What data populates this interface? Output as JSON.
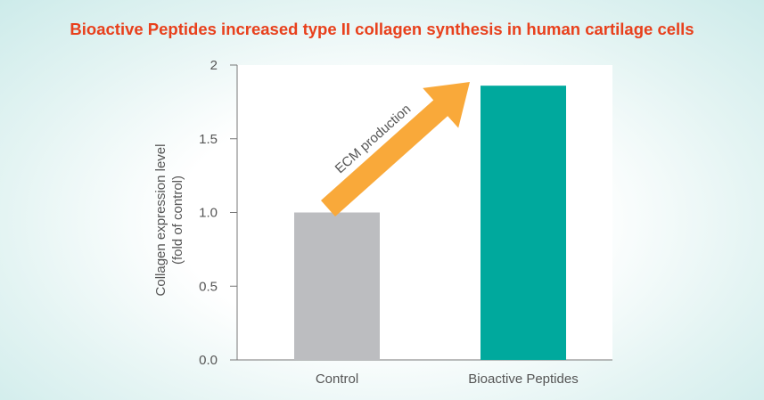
{
  "chart_data": {
    "type": "bar",
    "title": "Bioactive Peptides increased type II collagen synthesis in human cartilage cells",
    "categories": [
      "Control",
      "Bioactive Peptides"
    ],
    "values": [
      1.0,
      1.86
    ],
    "ylabel_line1": "Collagen expression level",
    "ylabel_line2": "(fold of control)",
    "ylim": [
      0,
      2
    ],
    "yticks": [
      "0.0",
      "0.5",
      "1.0",
      "1.5",
      "2"
    ],
    "ytick_values": [
      0,
      0.5,
      1.0,
      1.5,
      2
    ],
    "annotation": "ECM production",
    "colors": {
      "Control": "#bcbdc0",
      "Bioactive Peptides": "#00a99d",
      "arrow": "#f9a93a",
      "title": "#e8401c"
    },
    "grid": false,
    "legend": "none"
  }
}
